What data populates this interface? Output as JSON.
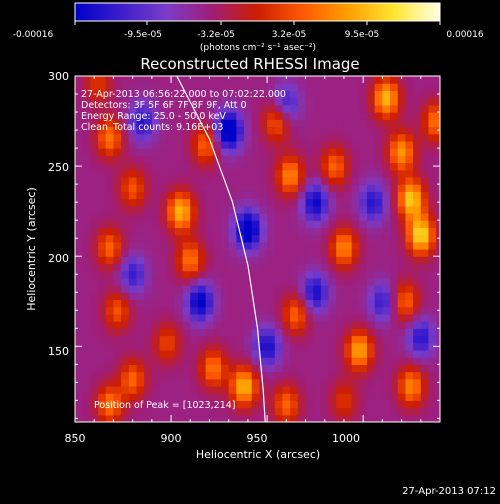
{
  "colorbar": {
    "tick_labels": [
      "-0.00016",
      "-9.5e-05",
      "-3.2e-05",
      "3.2e-05",
      "9.5e-05",
      "0.00016"
    ],
    "units": "(photons cm⁻² s⁻¹ asec⁻²)"
  },
  "info": {
    "time_range": "27-Apr-2013 06:56:22.000 to 07:02:22.000",
    "detectors": "Detectors: 3F 5F 6F 7F 8F 9F, Att 0",
    "energy": "Energy Range: 25.0 - 50.0 keV",
    "method": "Clean",
    "counts": "Total counts: 9.16E+03",
    "peak": "Position of Peak = [1023,214]"
  },
  "timestamp": "27-Apr-2013 07:12",
  "colors": {
    "background": "#000000",
    "colormap": [
      "#0000c8",
      "#3c1ecc",
      "#7a3cc8",
      "#a01e78",
      "#cc1e00",
      "#ff5a00",
      "#ffa000",
      "#ffe632",
      "#ffffe6"
    ],
    "limb": "#ffffff"
  },
  "chart_data": {
    "type": "heatmap",
    "title": "Reconstructed RHESSI Image",
    "xlabel": "Heliocentric X (arcsec)",
    "ylabel": "Heliocentric Y (arcsec)",
    "xlim": [
      850,
      1040
    ],
    "ylim": [
      108,
      300
    ],
    "xticks": [
      850,
      900,
      950,
      1000
    ],
    "yticks": [
      150,
      200,
      250,
      300
    ],
    "colorbar_range": [
      -0.00016,
      0.00016
    ],
    "grid_resolution": 4,
    "peak": [
      1023,
      214
    ],
    "limb_points": [
      [
        903,
        300
      ],
      [
        920,
        265
      ],
      [
        932,
        230
      ],
      [
        940,
        195
      ],
      [
        945,
        160
      ],
      [
        948,
        125
      ],
      [
        949,
        108
      ]
    ],
    "blobs": [
      {
        "x": 862,
        "y": 296,
        "w": 6e-05
      },
      {
        "x": 868,
        "y": 266,
        "w": 0.0001
      },
      {
        "x": 880,
        "y": 238,
        "w": 8e-05
      },
      {
        "x": 868,
        "y": 205,
        "w": 9e-05
      },
      {
        "x": 872,
        "y": 170,
        "w": 8e-05
      },
      {
        "x": 880,
        "y": 132,
        "w": 9e-05
      },
      {
        "x": 868,
        "y": 118,
        "w": 0.0001
      },
      {
        "x": 905,
        "y": 225,
        "w": 0.00014
      },
      {
        "x": 910,
        "y": 198,
        "w": 0.0001
      },
      {
        "x": 918,
        "y": 262,
        "w": 9e-05
      },
      {
        "x": 898,
        "y": 152,
        "w": 7e-05
      },
      {
        "x": 922,
        "y": 138,
        "w": 0.0001
      },
      {
        "x": 938,
        "y": 128,
        "w": 0.00014
      },
      {
        "x": 955,
        "y": 275,
        "w": 9e-05
      },
      {
        "x": 962,
        "y": 245,
        "w": 0.00011
      },
      {
        "x": 965,
        "y": 168,
        "w": 9e-05
      },
      {
        "x": 960,
        "y": 118,
        "w": 9e-05
      },
      {
        "x": 985,
        "y": 250,
        "w": 9e-05
      },
      {
        "x": 990,
        "y": 205,
        "w": 0.00011
      },
      {
        "x": 998,
        "y": 148,
        "w": 0.00013
      },
      {
        "x": 990,
        "y": 120,
        "w": 6e-05
      },
      {
        "x": 1012,
        "y": 288,
        "w": 0.00014
      },
      {
        "x": 1020,
        "y": 258,
        "w": 0.00012
      },
      {
        "x": 1025,
        "y": 232,
        "w": 0.00015
      },
      {
        "x": 1030,
        "y": 212,
        "w": 0.00016
      },
      {
        "x": 1022,
        "y": 175,
        "w": 9e-05
      },
      {
        "x": 1025,
        "y": 128,
        "w": 0.00011
      },
      {
        "x": 1038,
        "y": 275,
        "w": 0.0001
      }
    ],
    "troughs": [
      {
        "x": 930,
        "y": 270,
        "w": -0.00015
      },
      {
        "x": 940,
        "y": 215,
        "w": -0.00014
      },
      {
        "x": 915,
        "y": 175,
        "w": -0.00012
      },
      {
        "x": 950,
        "y": 150,
        "w": -0.0001
      },
      {
        "x": 880,
        "y": 190,
        "w": -8e-05
      },
      {
        "x": 885,
        "y": 275,
        "w": -9e-05
      },
      {
        "x": 975,
        "y": 230,
        "w": -0.00011
      },
      {
        "x": 975,
        "y": 180,
        "w": -0.0001
      },
      {
        "x": 1005,
        "y": 230,
        "w": -9e-05
      },
      {
        "x": 1010,
        "y": 175,
        "w": -8e-05
      },
      {
        "x": 1030,
        "y": 155,
        "w": -9e-05
      },
      {
        "x": 960,
        "y": 285,
        "w": -8e-05
      }
    ]
  }
}
